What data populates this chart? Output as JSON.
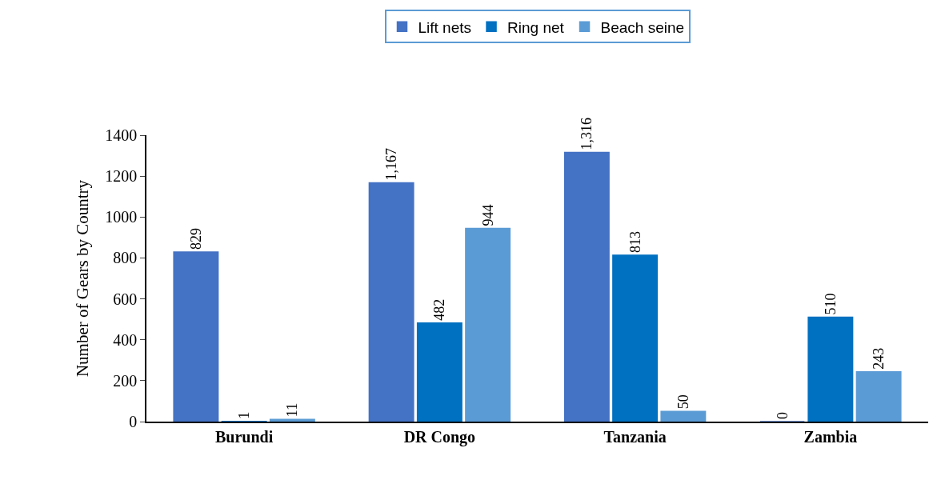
{
  "chart_data": {
    "type": "bar",
    "ylabel": "Number of Gears by Country",
    "categories": [
      "Burundi",
      "DR Congo",
      "Tanzania",
      "Zambia"
    ],
    "series": [
      {
        "name": "Lift nets",
        "color": "#4472c4",
        "values": [
          829,
          1167,
          1316,
          0
        ],
        "value_labels": [
          "829",
          "1,167",
          "1,316",
          "0"
        ]
      },
      {
        "name": "Ring net",
        "color": "#0070c0",
        "values": [
          1,
          482,
          813,
          510
        ],
        "value_labels": [
          "1",
          "482",
          "813",
          "510"
        ]
      },
      {
        "name": "Beach seine",
        "color": "#5b9bd5",
        "values": [
          11,
          944,
          50,
          243
        ],
        "value_labels": [
          "11",
          "944",
          "50",
          "243"
        ]
      }
    ],
    "ylim": [
      0,
      1400
    ],
    "yticks": [
      0,
      200,
      400,
      600,
      800,
      1000,
      1200,
      1400
    ],
    "legend": "top"
  }
}
